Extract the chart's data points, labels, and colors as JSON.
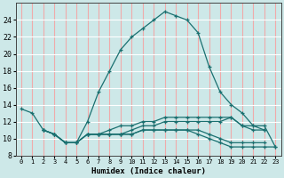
{
  "xlabel": "Humidex (Indice chaleur)",
  "xlim": [
    -0.5,
    23.5
  ],
  "ylim": [
    8,
    26
  ],
  "yticks": [
    8,
    10,
    12,
    14,
    16,
    18,
    20,
    22,
    24
  ],
  "xticks": [
    0,
    1,
    2,
    3,
    4,
    5,
    6,
    7,
    8,
    9,
    10,
    11,
    12,
    13,
    14,
    15,
    16,
    17,
    18,
    19,
    20,
    21,
    22,
    23
  ],
  "bg_color": "#cde8e8",
  "line_color": "#1a7070",
  "grid_color_y": "#ffffff",
  "grid_color_x": "#f0aaaa",
  "lines": [
    [
      13.5,
      13.0,
      11.0,
      10.5,
      9.5,
      9.5,
      12.0,
      15.5,
      18.0,
      20.5,
      22.0,
      23.0,
      24.0,
      25.0,
      24.5,
      24.0,
      22.5,
      18.5,
      15.5,
      14.0,
      13.0,
      11.5,
      11.5,
      9.0
    ],
    [
      null,
      null,
      11.0,
      10.5,
      9.5,
      9.5,
      10.5,
      10.5,
      11.0,
      11.5,
      11.5,
      12.0,
      12.0,
      12.5,
      12.5,
      12.5,
      12.5,
      12.5,
      12.5,
      12.5,
      11.5,
      11.0,
      11.0,
      null
    ],
    [
      null,
      null,
      11.0,
      10.5,
      9.5,
      9.5,
      10.5,
      10.5,
      10.5,
      10.5,
      10.5,
      11.0,
      11.0,
      11.0,
      11.0,
      11.0,
      10.5,
      10.0,
      9.5,
      9.0,
      9.0,
      9.0,
      9.0,
      9.0
    ],
    [
      null,
      null,
      11.0,
      10.5,
      9.5,
      9.5,
      10.5,
      10.5,
      10.5,
      10.5,
      10.5,
      11.0,
      11.0,
      11.0,
      11.0,
      11.0,
      11.0,
      10.5,
      10.0,
      9.5,
      9.5,
      9.5,
      9.5,
      null
    ],
    [
      null,
      null,
      null,
      null,
      null,
      null,
      10.5,
      10.5,
      10.5,
      10.5,
      11.0,
      11.5,
      11.5,
      12.0,
      12.0,
      12.0,
      12.0,
      12.0,
      12.0,
      12.5,
      11.5,
      11.5,
      11.0,
      null
    ]
  ]
}
